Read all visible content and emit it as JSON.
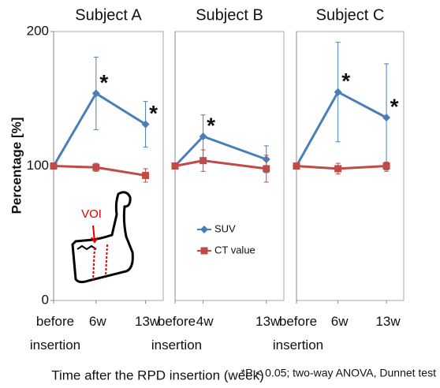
{
  "chart_data": [
    {
      "type": "line",
      "title": "Subject A",
      "xlim": [
        0,
        15.5
      ],
      "ylim": [
        0,
        200
      ],
      "yticks": [
        0,
        100,
        200
      ],
      "x": [
        0,
        6,
        13
      ],
      "xticks": [
        {
          "value": 0,
          "label": "before insertion"
        },
        {
          "value": 6,
          "label": "6w"
        },
        {
          "value": 13,
          "label": "13w"
        }
      ],
      "series": [
        {
          "name": "SUV",
          "color": "#4a7ebb",
          "marker": "diamond",
          "values": [
            100,
            154,
            131
          ],
          "errors": [
            2,
            27,
            17
          ]
        },
        {
          "name": "CT value",
          "color": "#be4b48",
          "marker": "square",
          "values": [
            100,
            99,
            93
          ],
          "errors": [
            2,
            3,
            5
          ]
        }
      ],
      "annotations": [
        {
          "text": "*",
          "x": 6
        },
        {
          "text": "*",
          "x": 13
        }
      ]
    },
    {
      "type": "line",
      "title": "Subject B",
      "xlim": [
        0,
        15.5
      ],
      "ylim": [
        0,
        200
      ],
      "x": [
        0,
        4,
        13
      ],
      "xticks": [
        {
          "value": 0,
          "label": "before insertion"
        },
        {
          "value": 4,
          "label": "4w"
        },
        {
          "value": 13,
          "label": "13w"
        }
      ],
      "series": [
        {
          "name": "SUV",
          "color": "#4a7ebb",
          "marker": "diamond",
          "values": [
            100,
            122,
            105
          ],
          "errors": [
            2,
            16,
            10
          ]
        },
        {
          "name": "CT value",
          "color": "#be4b48",
          "marker": "square",
          "values": [
            100,
            104,
            98
          ],
          "errors": [
            2,
            8,
            10
          ]
        }
      ],
      "annotations": [
        {
          "text": "*",
          "x": 4
        }
      ]
    },
    {
      "type": "line",
      "title": "Subject C",
      "xlim": [
        0,
        15.5
      ],
      "ylim": [
        0,
        200
      ],
      "x": [
        0,
        6,
        13
      ],
      "xticks": [
        {
          "value": 0,
          "label": "before insertion"
        },
        {
          "value": 6,
          "label": "6w"
        },
        {
          "value": 13,
          "label": "13w"
        }
      ],
      "series": [
        {
          "name": "SUV",
          "color": "#4a7ebb",
          "marker": "diamond",
          "values": [
            100,
            155,
            136
          ],
          "errors": [
            2,
            37,
            40
          ]
        },
        {
          "name": "CT value",
          "color": "#be4b48",
          "marker": "square",
          "values": [
            100,
            98,
            100
          ],
          "errors": [
            2,
            4,
            3
          ]
        }
      ],
      "annotations": [
        {
          "text": "*",
          "x": 6
        },
        {
          "text": "*",
          "x": 13
        }
      ]
    }
  ],
  "y_axis_label": "Percentage [%]",
  "x_axis_label": "Time after the RPD insertion (week)",
  "footnote": "*P < 0.05; two-way ANOVA, Dunnet test",
  "inset_label": "VOI"
}
